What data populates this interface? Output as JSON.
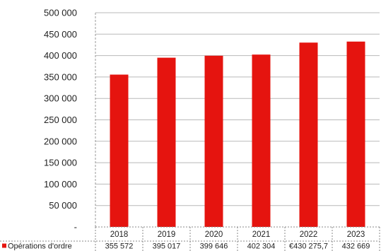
{
  "chart_data": {
    "type": "bar",
    "categories": [
      "2018",
      "2019",
      "2020",
      "2021",
      "2022",
      "2023"
    ],
    "series": [
      {
        "name": "Opérations d'ordre",
        "values": [
          355572,
          395017,
          399646,
          402304,
          430275.7,
          432669
        ],
        "value_labels": [
          "355 572",
          "395 017",
          "399 646",
          "402 304",
          "€430 275,7",
          "432 669"
        ],
        "color": "#e5140f"
      }
    ],
    "ylim": [
      0,
      500000
    ],
    "y_ticks": [
      0,
      50000,
      100000,
      150000,
      200000,
      250000,
      300000,
      350000,
      400000,
      450000,
      500000
    ],
    "y_tick_labels": [
      "-",
      "50 000",
      "100 000",
      "150 000",
      "200 000",
      "250 000",
      "300 000",
      "350 000",
      "400 000",
      "450 000",
      "500 000"
    ],
    "grid": true,
    "legend": "bottom-left data table",
    "title": "",
    "xlabel": "",
    "ylabel": ""
  }
}
